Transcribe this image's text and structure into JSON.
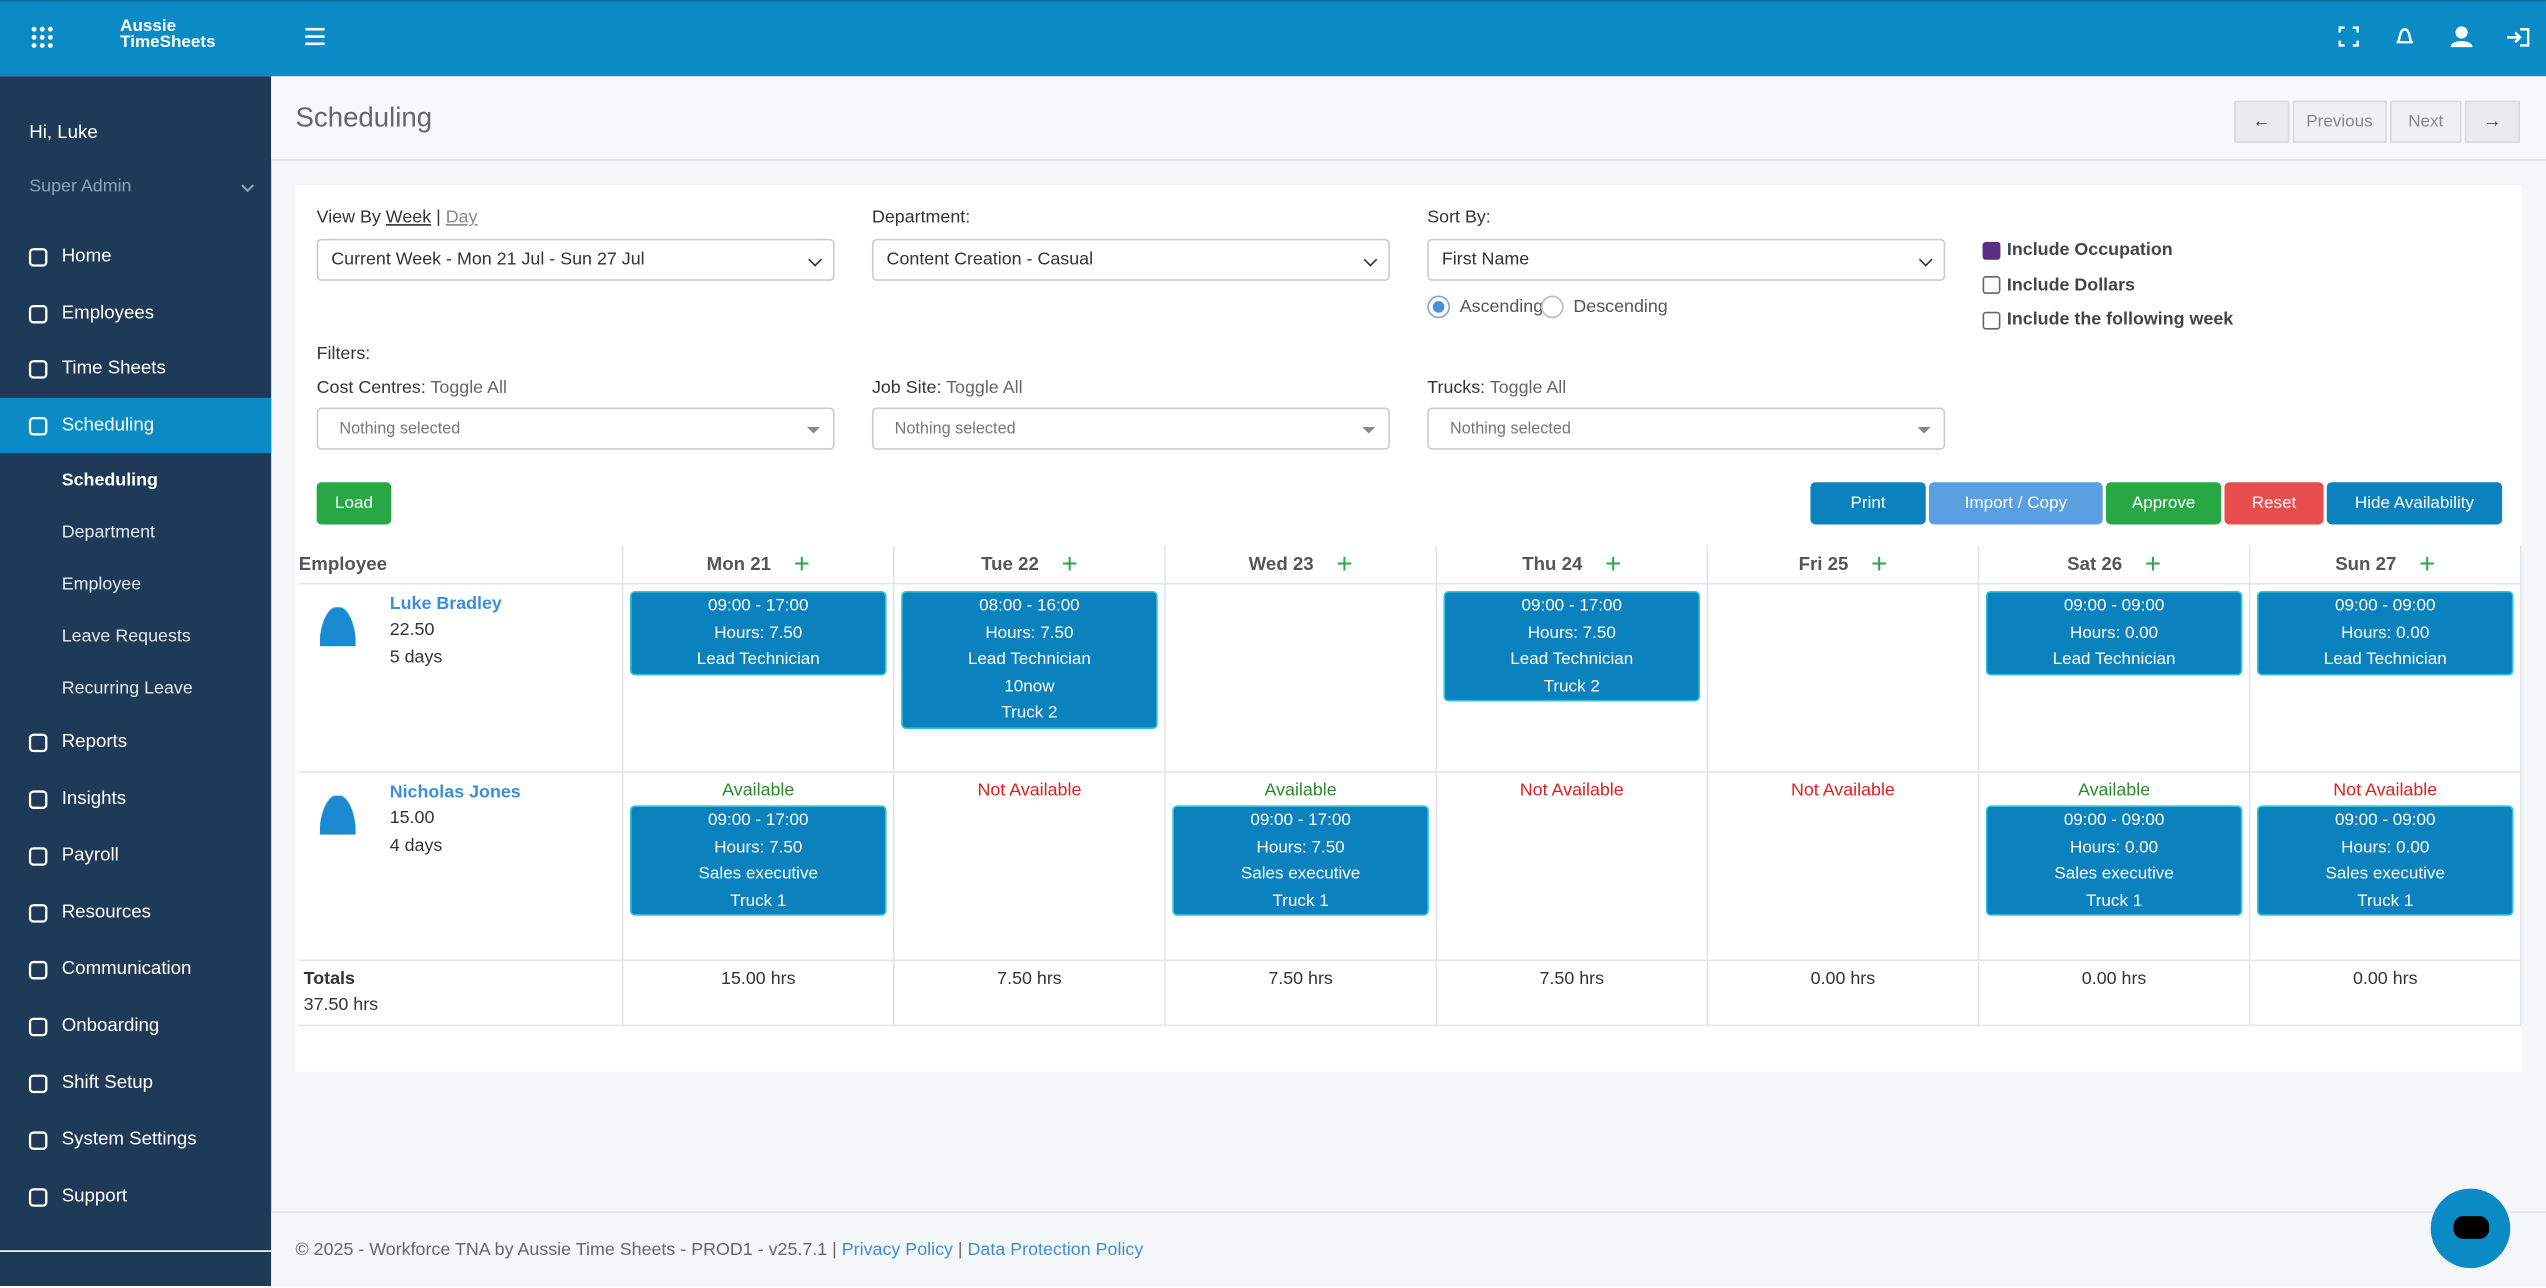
{
  "header": {
    "logo": "Aussie TimeSheets"
  },
  "sidebar": {
    "greeting": "Hi, Luke",
    "role": "Super Admin",
    "nav": [
      "Home",
      "Employees",
      "Time Sheets",
      "Scheduling"
    ],
    "sub": [
      "Scheduling",
      "Department",
      "Employee",
      "Leave Requests",
      "Recurring Leave"
    ],
    "nav2": [
      "Reports",
      "Insights",
      "Payroll",
      "Resources",
      "Communication",
      "Onboarding",
      "Shift Setup",
      "System Settings",
      "Support"
    ]
  },
  "page": {
    "title": "Scheduling",
    "previous": "Previous",
    "next": "Next"
  },
  "form": {
    "view_by": "View By",
    "week": "Week",
    "day": "Day",
    "period": "Current Week - Mon 21 Jul - Sun 27 Jul",
    "department_label": "Department:",
    "department": "Content Creation - Casual",
    "sort_label": "Sort By:",
    "sort": "First Name",
    "ascending": "Ascending",
    "descending": "Descending",
    "checkboxes": [
      {
        "label": "Include Occupation",
        "checked": true
      },
      {
        "label": "Include Dollars",
        "checked": false
      },
      {
        "label": "Include the following week",
        "checked": false
      }
    ],
    "filters": "Filters:",
    "filter_groups": [
      {
        "label": "Cost Centres:",
        "toggle": "Toggle All",
        "placeholder": "Nothing selected"
      },
      {
        "label": "Job Site:",
        "toggle": "Toggle All",
        "placeholder": "Nothing selected"
      },
      {
        "label": "Trucks:",
        "toggle": "Toggle All",
        "placeholder": "Nothing selected"
      }
    ],
    "load": "Load",
    "actions": [
      {
        "label": "Print",
        "color": "#0b82bd"
      },
      {
        "label": "Import / Copy",
        "color": "#5a9fe0"
      },
      {
        "label": "Approve",
        "color": "#28a745"
      },
      {
        "label": "Reset",
        "color": "#e84c4c"
      },
      {
        "label": "Hide Availability",
        "color": "#0b82bd"
      }
    ]
  },
  "table": {
    "employee": "Employee",
    "days": [
      "Mon 21",
      "Tue 22",
      "Wed 23",
      "Thu 24",
      "Fri 25",
      "Sat 26",
      "Sun 27"
    ],
    "rows": [
      {
        "name": "Luke Bradley",
        "rate": "22.50",
        "days": "5 days",
        "cells": [
          {
            "shift": [
              "09:00 - 17:00",
              "Hours: 7.50",
              "Lead Technician"
            ]
          },
          {
            "shift": [
              "08:00 - 16:00",
              "Hours: 7.50",
              "Lead Technician",
              "10now",
              "Truck 2"
            ]
          },
          null,
          {
            "shift": [
              "09:00 - 17:00",
              "Hours: 7.50",
              "Lead Technician",
              "Truck 2"
            ]
          },
          null,
          {
            "shift": [
              "09:00 - 09:00",
              "Hours: 0.00",
              "Lead Technician"
            ]
          },
          {
            "shift": [
              "09:00 - 09:00",
              "Hours: 0.00",
              "Lead Technician"
            ]
          }
        ]
      },
      {
        "name": "Nicholas Jones",
        "rate": "15.00",
        "days": "4 days",
        "cells": [
          {
            "availability": "Available",
            "available": true,
            "shift": [
              "09:00 - 17:00",
              "Hours: 7.50",
              "Sales executive",
              "Truck 1"
            ]
          },
          {
            "availability": "Not Available",
            "available": false
          },
          {
            "availability": "Available",
            "available": true,
            "shift": [
              "09:00 - 17:00",
              "Hours: 7.50",
              "Sales executive",
              "Truck 1"
            ]
          },
          {
            "availability": "Not Available",
            "available": false
          },
          {
            "availability": "Not Available",
            "available": false
          },
          {
            "availability": "Available",
            "available": true,
            "shift": [
              "09:00 - 09:00",
              "Hours: 0.00",
              "Sales executive",
              "Truck 1"
            ]
          },
          {
            "availability": "Not Available",
            "available": false,
            "shift": [
              "09:00 - 09:00",
              "Hours: 0.00",
              "Sales executive",
              "Truck 1"
            ]
          }
        ]
      }
    ],
    "totals_label": "Totals",
    "total": "37.50 hrs",
    "day_totals": [
      "15.00 hrs",
      "7.50 hrs",
      "7.50 hrs",
      "7.50 hrs",
      "0.00 hrs",
      "0.00 hrs",
      "0.00 hrs"
    ]
  },
  "footer": {
    "text": "© 2025 - Workforce TNA by Aussie Time Sheets - PROD1 - v25.7.1 |",
    "privacy": "Privacy Policy",
    "sep": "|",
    "data_protection": "Data Protection Policy"
  }
}
